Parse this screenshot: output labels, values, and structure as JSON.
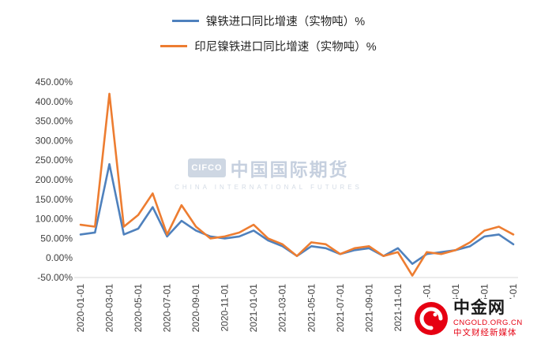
{
  "watermark": {
    "cifco": "CIFCO",
    "title": "中国国际期货",
    "subtitle": "CHINA INTERNATIONAL FUTURES"
  },
  "logo": {
    "name": "中金网",
    "domain": "CNGOLD.ORG.CN",
    "tagline": "中文财经新媒体"
  },
  "chart_data": {
    "type": "line",
    "title": "",
    "xlabel": "",
    "ylabel": "",
    "grid": false,
    "legend_position": "top",
    "ylim": [
      -50,
      450
    ],
    "x": [
      "2020-01-01",
      "2020-02-01",
      "2020-03-01",
      "2020-04-01",
      "2020-05-01",
      "2020-06-01",
      "2020-07-01",
      "2020-08-01",
      "2020-09-01",
      "2020-10-01",
      "2020-11-01",
      "2020-12-01",
      "2021-01-01",
      "2021-02-01",
      "2021-03-01",
      "2021-04-01",
      "2021-05-01",
      "2021-06-01",
      "2021-07-01",
      "2021-08-01",
      "2021-09-01",
      "2021-10-01",
      "2021-11-01",
      "2021-12-01",
      "2022-01-01",
      "2022-02-01",
      "2022-03-01",
      "2022-04-01",
      "2022-05-01",
      "2022-06-01",
      "2022-07-01"
    ],
    "x_tick_every": 2,
    "x_tick_labels": [
      "2020-01-01",
      "2020-03-01",
      "2020-05-01",
      "2020-07-01",
      "2020-09-01",
      "2020-11-01",
      "2021-01-01",
      "2021-03-01",
      "2021-05-01",
      "2021-07-01",
      "2021-09-01",
      "2021-11-01",
      "2022-01-01",
      "2022-03-01",
      "2022-05-01",
      "2022-07-01"
    ],
    "y_ticks": [
      {
        "value": 450,
        "label": "450.00%"
      },
      {
        "value": 400,
        "label": "400.00%"
      },
      {
        "value": 350,
        "label": "350.00%"
      },
      {
        "value": 300,
        "label": "300.00%"
      },
      {
        "value": 250,
        "label": "250.00%"
      },
      {
        "value": 200,
        "label": "200.00%"
      },
      {
        "value": 150,
        "label": "150.00%"
      },
      {
        "value": 100,
        "label": "100.00%"
      },
      {
        "value": 50,
        "label": "50.00%"
      },
      {
        "value": 0,
        "label": "0.00%"
      },
      {
        "value": -50,
        "label": "-50.00%"
      }
    ],
    "series": [
      {
        "name": "镍铁进口同比增速（实物吨）%",
        "color": "#4f81bd",
        "values": [
          60,
          65,
          240,
          60,
          75,
          130,
          55,
          95,
          70,
          55,
          50,
          55,
          70,
          45,
          30,
          5,
          30,
          25,
          10,
          20,
          25,
          5,
          25,
          -15,
          10,
          15,
          20,
          30,
          55,
          60,
          35
        ]
      },
      {
        "name": "印尼镍铁进口同比增速（实物吨）%",
        "color": "#ed7d31",
        "values": [
          85,
          80,
          420,
          80,
          110,
          165,
          60,
          135,
          80,
          50,
          55,
          65,
          85,
          50,
          35,
          5,
          40,
          35,
          10,
          25,
          30,
          5,
          15,
          -45,
          15,
          10,
          20,
          40,
          70,
          80,
          60
        ]
      }
    ]
  }
}
